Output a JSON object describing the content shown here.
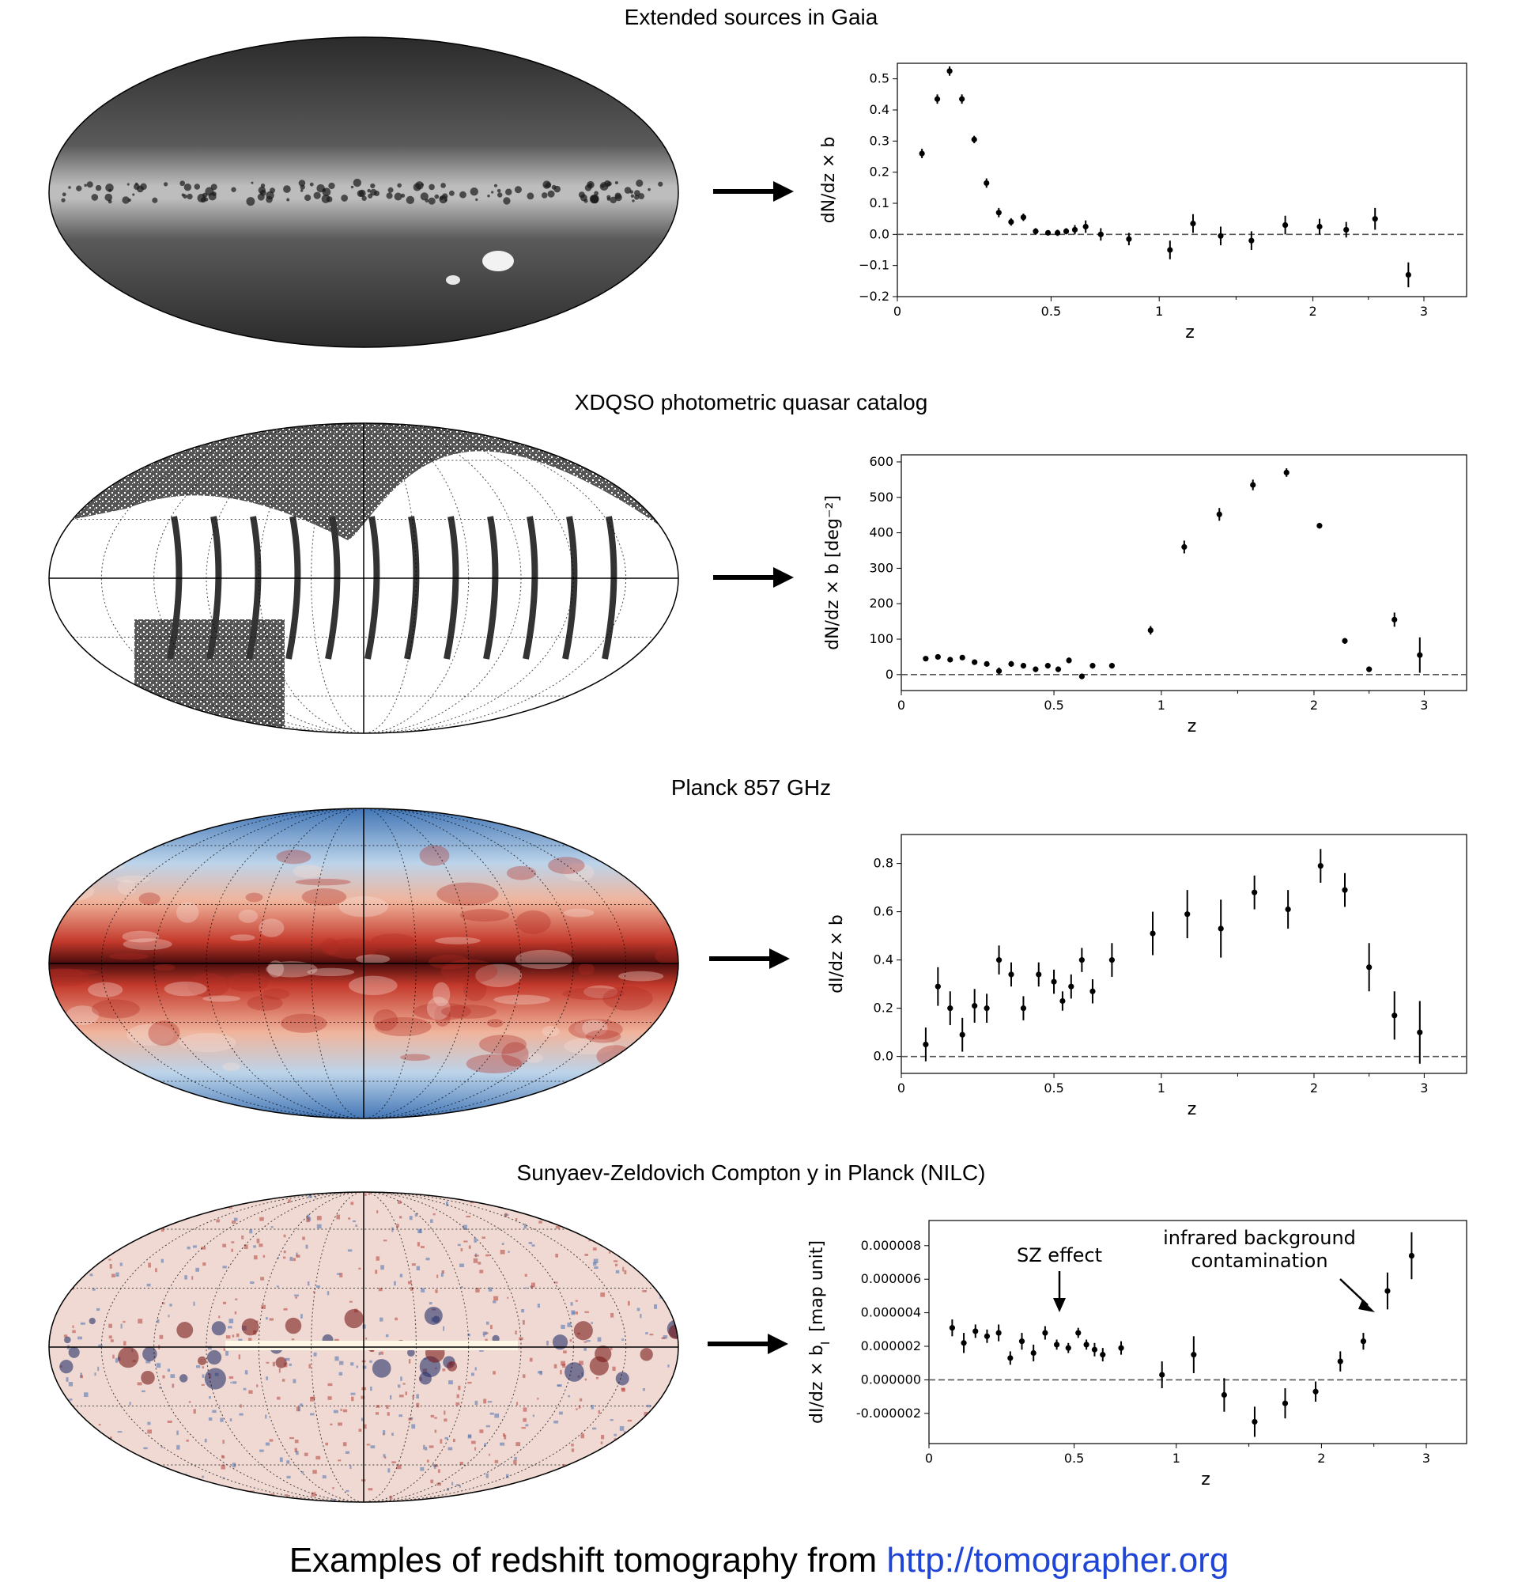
{
  "footer": {
    "text": "Examples of redshift tomography from ",
    "link": "http://tomographer.org"
  },
  "panels": [
    {
      "title": "Extended sources in Gaia",
      "map_style": "gaia",
      "chart_data": {
        "type": "scatter",
        "xlabel": "z",
        "ylabel": "dN/dz × b",
        "x_ticks": [
          "0",
          "0.5",
          "1",
          "2",
          "3"
        ],
        "y_ticks": [
          "0.5",
          "0.4",
          "0.3",
          "0.2",
          "0.1",
          "0.0",
          "−0.1",
          "−0.2"
        ],
        "ylim": [
          -0.2,
          0.55
        ],
        "reference_line": 0,
        "points": [
          {
            "x": 0.08,
            "y": 0.26,
            "err": 0.015
          },
          {
            "x": 0.13,
            "y": 0.435,
            "err": 0.015
          },
          {
            "x": 0.17,
            "y": 0.525,
            "err": 0.015
          },
          {
            "x": 0.21,
            "y": 0.435,
            "err": 0.015
          },
          {
            "x": 0.25,
            "y": 0.305,
            "err": 0.012
          },
          {
            "x": 0.29,
            "y": 0.165,
            "err": 0.015
          },
          {
            "x": 0.33,
            "y": 0.07,
            "err": 0.015
          },
          {
            "x": 0.37,
            "y": 0.04,
            "err": 0.012
          },
          {
            "x": 0.41,
            "y": 0.055,
            "err": 0.012
          },
          {
            "x": 0.45,
            "y": 0.01,
            "err": 0.01
          },
          {
            "x": 0.49,
            "y": 0.005,
            "err": 0.008
          },
          {
            "x": 0.53,
            "y": 0.005,
            "err": 0.01
          },
          {
            "x": 0.57,
            "y": 0.01,
            "err": 0.01
          },
          {
            "x": 0.61,
            "y": 0.015,
            "err": 0.015
          },
          {
            "x": 0.66,
            "y": 0.025,
            "err": 0.02
          },
          {
            "x": 0.73,
            "y": 0.0,
            "err": 0.02
          },
          {
            "x": 0.86,
            "y": -0.015,
            "err": 0.02
          },
          {
            "x": 1.07,
            "y": -0.05,
            "err": 0.03
          },
          {
            "x": 1.22,
            "y": 0.035,
            "err": 0.03
          },
          {
            "x": 1.4,
            "y": -0.005,
            "err": 0.03
          },
          {
            "x": 1.6,
            "y": -0.02,
            "err": 0.03
          },
          {
            "x": 1.82,
            "y": 0.03,
            "err": 0.03
          },
          {
            "x": 2.06,
            "y": 0.025,
            "err": 0.025
          },
          {
            "x": 2.3,
            "y": 0.015,
            "err": 0.025
          },
          {
            "x": 2.56,
            "y": 0.05,
            "err": 0.035
          },
          {
            "x": 2.86,
            "y": -0.13,
            "err": 0.04
          }
        ]
      }
    },
    {
      "title": "XDQSO photometric quasar catalog",
      "map_style": "xdqso",
      "chart_data": {
        "type": "scatter",
        "xlabel": "z",
        "ylabel": "dN/dz × b  [deg⁻²]",
        "x_ticks": [
          "0",
          "0.5",
          "1",
          "2",
          "3"
        ],
        "y_ticks": [
          "600",
          "500",
          "400",
          "300",
          "200",
          "100",
          "0"
        ],
        "ylim": [
          -45,
          620
        ],
        "reference_line": 0,
        "points": [
          {
            "x": 0.08,
            "y": 45,
            "err": 5
          },
          {
            "x": 0.12,
            "y": 50,
            "err": 5
          },
          {
            "x": 0.16,
            "y": 42,
            "err": 5
          },
          {
            "x": 0.2,
            "y": 48,
            "err": 5
          },
          {
            "x": 0.24,
            "y": 35,
            "err": 5
          },
          {
            "x": 0.28,
            "y": 30,
            "err": 5
          },
          {
            "x": 0.32,
            "y": 10,
            "err": 10
          },
          {
            "x": 0.36,
            "y": 30,
            "err": 8
          },
          {
            "x": 0.4,
            "y": 25,
            "err": 8
          },
          {
            "x": 0.44,
            "y": 15,
            "err": 8
          },
          {
            "x": 0.48,
            "y": 25,
            "err": 8
          },
          {
            "x": 0.52,
            "y": 15,
            "err": 8
          },
          {
            "x": 0.57,
            "y": 40,
            "err": 8
          },
          {
            "x": 0.63,
            "y": -5,
            "err": 8
          },
          {
            "x": 0.68,
            "y": 25,
            "err": 8
          },
          {
            "x": 0.77,
            "y": 25,
            "err": 8
          },
          {
            "x": 0.95,
            "y": 125,
            "err": 12
          },
          {
            "x": 1.15,
            "y": 360,
            "err": 18
          },
          {
            "x": 1.38,
            "y": 452,
            "err": 18
          },
          {
            "x": 1.6,
            "y": 535,
            "err": 15
          },
          {
            "x": 1.82,
            "y": 570,
            "err": 12
          },
          {
            "x": 2.05,
            "y": 420,
            "err": 8
          },
          {
            "x": 2.28,
            "y": 95,
            "err": 8
          },
          {
            "x": 2.5,
            "y": 15,
            "err": 8
          },
          {
            "x": 2.73,
            "y": 155,
            "err": 20
          },
          {
            "x": 2.96,
            "y": 55,
            "err": 50
          }
        ]
      }
    },
    {
      "title": "Planck 857 GHz",
      "map_style": "planck",
      "chart_data": {
        "type": "scatter",
        "xlabel": "z",
        "ylabel": "dI/dz × b",
        "x_ticks": [
          "0",
          "0.5",
          "1",
          "2",
          "3"
        ],
        "y_ticks": [
          "0.8",
          "0.6",
          "0.4",
          "0.2",
          "0.0"
        ],
        "ylim": [
          -0.07,
          0.92
        ],
        "reference_line": 0,
        "points": [
          {
            "x": 0.08,
            "y": 0.05,
            "err": 0.07
          },
          {
            "x": 0.12,
            "y": 0.29,
            "err": 0.08
          },
          {
            "x": 0.16,
            "y": 0.2,
            "err": 0.07
          },
          {
            "x": 0.2,
            "y": 0.09,
            "err": 0.07
          },
          {
            "x": 0.24,
            "y": 0.21,
            "err": 0.07
          },
          {
            "x": 0.28,
            "y": 0.2,
            "err": 0.06
          },
          {
            "x": 0.32,
            "y": 0.4,
            "err": 0.06
          },
          {
            "x": 0.36,
            "y": 0.34,
            "err": 0.05
          },
          {
            "x": 0.4,
            "y": 0.2,
            "err": 0.05
          },
          {
            "x": 0.45,
            "y": 0.34,
            "err": 0.05
          },
          {
            "x": 0.5,
            "y": 0.31,
            "err": 0.05
          },
          {
            "x": 0.54,
            "y": 0.23,
            "err": 0.04
          },
          {
            "x": 0.58,
            "y": 0.29,
            "err": 0.05
          },
          {
            "x": 0.63,
            "y": 0.4,
            "err": 0.05
          },
          {
            "x": 0.68,
            "y": 0.27,
            "err": 0.05
          },
          {
            "x": 0.77,
            "y": 0.4,
            "err": 0.07
          },
          {
            "x": 0.96,
            "y": 0.51,
            "err": 0.09
          },
          {
            "x": 1.17,
            "y": 0.59,
            "err": 0.1
          },
          {
            "x": 1.39,
            "y": 0.53,
            "err": 0.12
          },
          {
            "x": 1.61,
            "y": 0.68,
            "err": 0.07
          },
          {
            "x": 1.83,
            "y": 0.61,
            "err": 0.08
          },
          {
            "x": 2.06,
            "y": 0.79,
            "err": 0.07
          },
          {
            "x": 2.28,
            "y": 0.69,
            "err": 0.07
          },
          {
            "x": 2.5,
            "y": 0.37,
            "err": 0.1
          },
          {
            "x": 2.73,
            "y": 0.17,
            "err": 0.1
          },
          {
            "x": 2.96,
            "y": 0.1,
            "err": 0.13
          }
        ]
      }
    },
    {
      "title": "Sunyaev-Zeldovich Compton y in Planck (NILC)",
      "map_style": "sz",
      "annotations": {
        "sz_effect": "SZ effect",
        "infrared_line1": "infrared background",
        "infrared_line2": "contamination"
      },
      "chart_data": {
        "type": "scatter",
        "xlabel": "z",
        "ylabel": "dI/dz × b",
        "ylabel_sub": "I",
        "ylabel_unit": "[map unit]",
        "x_ticks": [
          "0",
          "0.5",
          "1",
          "2",
          "3"
        ],
        "y_ticks": [
          "0.000008",
          "0.000006",
          "0.000004",
          "0.000002",
          "0.000000",
          "-0.000002"
        ],
        "ylim": [
          -3.8e-06,
          9.5e-06
        ],
        "reference_line": 0,
        "points": [
          {
            "x": 0.08,
            "y": 3.1e-06,
            "err": 5e-07
          },
          {
            "x": 0.12,
            "y": 2.2e-06,
            "err": 6e-07
          },
          {
            "x": 0.16,
            "y": 2.9e-06,
            "err": 4e-07
          },
          {
            "x": 0.2,
            "y": 2.6e-06,
            "err": 4e-07
          },
          {
            "x": 0.24,
            "y": 2.8e-06,
            "err": 5e-07
          },
          {
            "x": 0.28,
            "y": 1.3e-06,
            "err": 4e-07
          },
          {
            "x": 0.32,
            "y": 2.3e-06,
            "err": 5e-07
          },
          {
            "x": 0.36,
            "y": 1.6e-06,
            "err": 5e-07
          },
          {
            "x": 0.4,
            "y": 2.8e-06,
            "err": 4e-07
          },
          {
            "x": 0.44,
            "y": 2.1e-06,
            "err": 3e-07
          },
          {
            "x": 0.48,
            "y": 1.9e-06,
            "err": 3e-07
          },
          {
            "x": 0.52,
            "y": 2.8e-06,
            "err": 3e-07
          },
          {
            "x": 0.56,
            "y": 2.1e-06,
            "err": 3e-07
          },
          {
            "x": 0.6,
            "y": 1.8e-06,
            "err": 4e-07
          },
          {
            "x": 0.64,
            "y": 1.5e-06,
            "err": 4e-07
          },
          {
            "x": 0.73,
            "y": 1.9e-06,
            "err": 4e-07
          },
          {
            "x": 0.93,
            "y": 3e-07,
            "err": 8e-07
          },
          {
            "x": 1.12,
            "y": 1.5e-06,
            "err": 1.1e-06
          },
          {
            "x": 1.33,
            "y": -9e-07,
            "err": 1e-06
          },
          {
            "x": 1.54,
            "y": -2.5e-06,
            "err": 9e-07
          },
          {
            "x": 1.75,
            "y": -1.4e-06,
            "err": 9e-07
          },
          {
            "x": 1.96,
            "y": -7e-07,
            "err": 6e-07
          },
          {
            "x": 2.18,
            "y": 1.1e-06,
            "err": 6e-07
          },
          {
            "x": 2.4,
            "y": 2.3e-06,
            "err": 5e-07
          },
          {
            "x": 2.63,
            "y": 5.3e-06,
            "err": 1.1e-06
          },
          {
            "x": 2.86,
            "y": 7.4e-06,
            "err": 1.4e-06
          }
        ]
      }
    }
  ]
}
